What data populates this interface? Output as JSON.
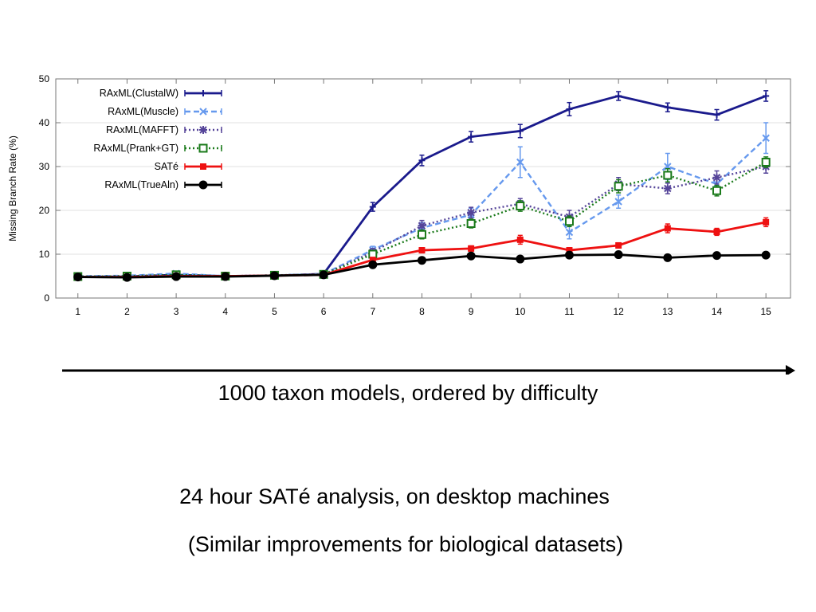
{
  "chart_data": {
    "type": "line",
    "title": "",
    "xlabel": "",
    "ylabel": "Missing Branch Rate (%)",
    "x": [
      1,
      2,
      3,
      4,
      5,
      6,
      7,
      8,
      9,
      10,
      11,
      12,
      13,
      14,
      15
    ],
    "xticks": [
      "1",
      "2",
      "3",
      "4",
      "5",
      "6",
      "7",
      "8",
      "9",
      "10",
      "11",
      "12",
      "13",
      "14",
      "15"
    ],
    "yticks": [
      "0",
      "10",
      "20",
      "30",
      "40",
      "50"
    ],
    "xlim": [
      0.55,
      15.5
    ],
    "ylim": [
      0,
      50
    ],
    "grid": "y",
    "legend": "top-left",
    "series": [
      {
        "name": "RAxML(ClustalW)",
        "color": "#1a1a8c",
        "style": "solid",
        "marker": "plus",
        "values": [
          4.8,
          4.9,
          5.3,
          5.0,
          5.1,
          5.5,
          20.8,
          31.4,
          36.8,
          38.1,
          43.1,
          46.1,
          43.5,
          41.8,
          46.1
        ],
        "err": [
          0.3,
          0.3,
          0.3,
          0.3,
          0.3,
          0.3,
          1.0,
          1.2,
          1.2,
          1.5,
          1.5,
          1.0,
          1.0,
          1.2,
          1.2
        ]
      },
      {
        "name": "RAxML(Muscle)",
        "color": "#6699ee",
        "style": "dashed",
        "marker": "x",
        "values": [
          5.0,
          5.1,
          5.6,
          5.0,
          5.2,
          5.5,
          11.0,
          16.0,
          19.0,
          31.0,
          15.0,
          22.0,
          30.0,
          26.0,
          36.5
        ],
        "err": [
          0.3,
          0.3,
          0.3,
          0.3,
          0.3,
          0.3,
          0.8,
          1.2,
          1.5,
          3.5,
          1.5,
          1.5,
          3.0,
          1.5,
          3.5
        ]
      },
      {
        "name": "RAxML(MAFFT)",
        "color": "#554499",
        "style": "dotted",
        "marker": "star",
        "values": [
          4.9,
          5.0,
          5.3,
          5.0,
          5.2,
          5.4,
          10.5,
          16.5,
          19.5,
          21.5,
          18.5,
          26.0,
          25.0,
          27.5,
          30.0
        ],
        "err": [
          0.3,
          0.3,
          0.3,
          0.3,
          0.3,
          0.3,
          0.8,
          1.2,
          1.2,
          1.2,
          1.5,
          1.5,
          1.2,
          1.5,
          1.5
        ]
      },
      {
        "name": "RAxML(Prank+GT)",
        "color": "#1a7a1a",
        "style": "dotted",
        "marker": "square",
        "values": [
          4.9,
          5.0,
          5.3,
          5.0,
          5.2,
          5.4,
          10.0,
          14.5,
          17.0,
          21.0,
          17.5,
          25.5,
          28.0,
          24.5,
          31.0
        ],
        "err": [
          0.3,
          0.3,
          0.3,
          0.3,
          0.3,
          0.3,
          0.8,
          1.0,
          1.0,
          1.2,
          1.2,
          1.5,
          1.5,
          1.2,
          1.2
        ]
      },
      {
        "name": "SATé",
        "color": "#ee1111",
        "style": "solid",
        "marker": "square-filled",
        "values": [
          4.8,
          4.8,
          5.0,
          5.0,
          5.1,
          5.3,
          8.7,
          10.9,
          11.3,
          13.3,
          10.9,
          12.0,
          15.9,
          15.1,
          17.3
        ],
        "err": [
          0.3,
          0.3,
          0.3,
          0.3,
          0.3,
          0.3,
          0.5,
          0.6,
          0.6,
          1.0,
          0.6,
          0.6,
          1.0,
          0.8,
          1.0
        ]
      },
      {
        "name": "RAxML(TrueAln)",
        "color": "#000000",
        "style": "solid",
        "marker": "circle",
        "values": [
          4.8,
          4.7,
          4.9,
          4.9,
          5.1,
          5.3,
          7.6,
          8.6,
          9.6,
          8.9,
          9.8,
          9.9,
          9.2,
          9.7,
          9.8
        ],
        "err": [
          0.3,
          0.3,
          0.3,
          0.3,
          0.3,
          0.3,
          0.4,
          0.4,
          0.4,
          0.4,
          0.4,
          0.4,
          0.4,
          0.4,
          0.4
        ]
      }
    ]
  },
  "captions": {
    "arrow": "1000 taxon models, ordered by difficulty",
    "line1": "24 hour SATé analysis, on desktop machines",
    "line2": "(Similar improvements for biological datasets)"
  }
}
